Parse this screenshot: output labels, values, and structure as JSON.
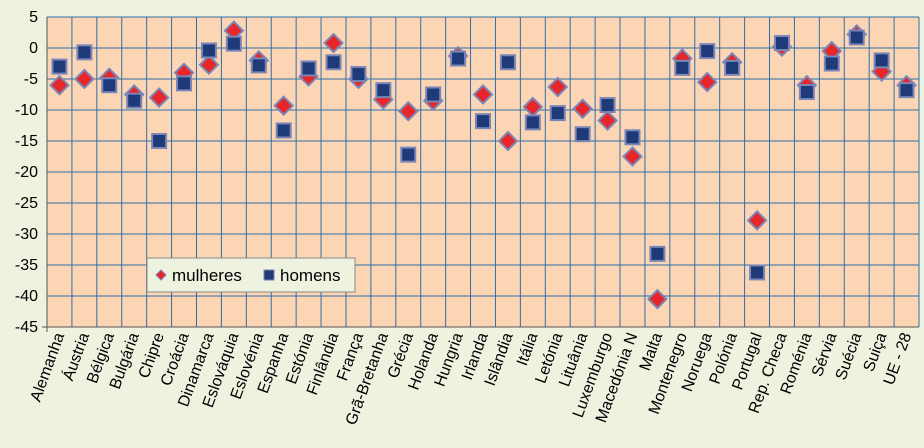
{
  "chart_data": {
    "type": "scatter",
    "categories": [
      "Alemanha",
      "Áustria",
      "Bélgica",
      "Bulgária",
      "Chipre",
      "Croácia",
      "Dinamarca",
      "Eslováquia",
      "Eslovénia",
      "Espanha",
      "Estónia",
      "Finlândia",
      "França",
      "Grã-Bretanha",
      "Grécia",
      "Holanda",
      "Hungria",
      "Irlanda",
      "Islândia",
      "Itália",
      "Letónia",
      "Lituânia",
      "Luxemburgo",
      "Macedónia N",
      "Malta",
      "Montenegro",
      "Noruega",
      "Polónia",
      "Portugal",
      "Rep. Checa",
      "Roménia",
      "Sérvia",
      "Suécia",
      "Suiça",
      "UE - 28"
    ],
    "series": [
      {
        "name": "mulheres",
        "marker": "diamond",
        "color": "#e8262a",
        "values": [
          -6.0,
          -5.0,
          -4.8,
          -7.5,
          -8.0,
          -4.0,
          -2.7,
          2.8,
          -2.0,
          -9.3,
          -4.6,
          0.8,
          -5.0,
          -8.3,
          -10.2,
          -8.5,
          -1.3,
          -7.5,
          -15.0,
          -9.5,
          -6.3,
          -9.8,
          -11.7,
          -17.5,
          -40.5,
          -1.7,
          -5.5,
          -2.3,
          -27.8,
          0.2,
          -6.0,
          -0.5,
          2.2,
          -3.8,
          -6.0
        ]
      },
      {
        "name": "homens",
        "marker": "square",
        "color": "#1f3a78",
        "values": [
          -3.0,
          -0.7,
          -6.0,
          -8.5,
          -15.0,
          -5.7,
          -0.4,
          0.7,
          -2.8,
          -13.3,
          -3.3,
          -2.3,
          -4.2,
          -6.8,
          -17.2,
          -7.5,
          -1.7,
          -11.8,
          -2.3,
          -12.0,
          -10.5,
          -13.9,
          -9.2,
          -14.4,
          -33.2,
          -3.2,
          -0.5,
          -3.2,
          -36.2,
          0.8,
          -7.1,
          -2.5,
          1.7,
          -2.0,
          -6.8
        ]
      }
    ],
    "ylim": [
      -45,
      5
    ],
    "yticks": [
      5,
      0,
      -5,
      -10,
      -15,
      -20,
      -25,
      -30,
      -35,
      -40,
      -45
    ],
    "grid": true,
    "legend_position": "bottom-left",
    "colors": {
      "plot_background": "#fcd6b4",
      "page_background": "#eef3e0",
      "gridline": "#2f6fa8",
      "marker_border": "#7a86b8"
    }
  }
}
